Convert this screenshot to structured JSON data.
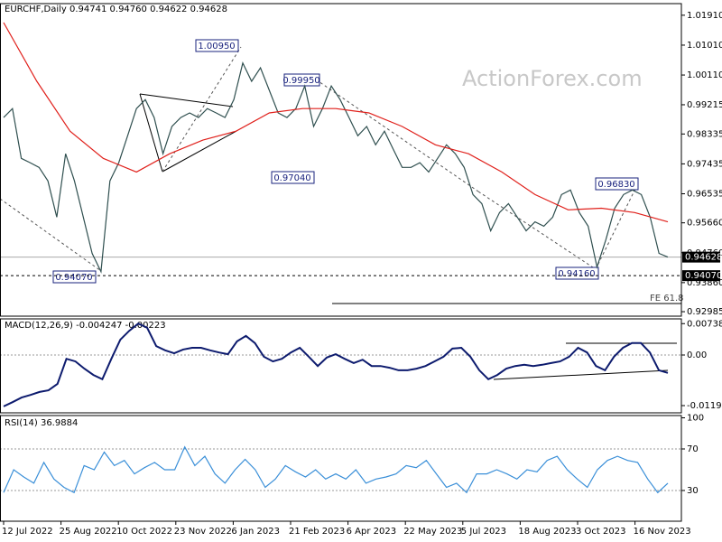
{
  "chart_data": [
    {
      "type": "line",
      "title": "EURCHF,Daily  0.94741 0.94760 0.94622 0.94628",
      "watermark": "ActionForex.com",
      "series": [
        {
          "color": "#2f4f4f",
          "values": [
            0.9883,
            0.991,
            0.976,
            0.9747,
            0.9733,
            0.9692,
            0.9583,
            0.9774,
            0.9692,
            0.9583,
            0.9474,
            0.9419,
            0.9692,
            0.9747,
            0.9828,
            0.991,
            0.9937,
            0.9883,
            0.9774,
            0.9856,
            0.9883,
            0.9897,
            0.9883,
            0.991,
            0.9897,
            0.9883,
            0.9937,
            1.0047,
            0.9992,
            1.0033,
            0.9965,
            0.9897,
            0.9883,
            0.991,
            0.9978,
            0.9856,
            0.991,
            0.9978,
            0.9937,
            0.9883,
            0.9828,
            0.9856,
            0.9801,
            0.9842,
            0.9787,
            0.9733,
            0.9733,
            0.9747,
            0.9719,
            0.976,
            0.9801,
            0.9774,
            0.9733,
            0.9651,
            0.9624,
            0.9542,
            0.9597,
            0.9624,
            0.9583,
            0.9542,
            0.9569,
            0.9556,
            0.9583,
            0.9651,
            0.9665,
            0.9597,
            0.9556,
            0.9433,
            0.9515,
            0.961,
            0.9651,
            0.9665,
            0.9651,
            0.9583,
            0.9474,
            0.9463
          ]
        },
        {
          "color": "#e0201b",
          "values": [
            1.0169,
            0.9992,
            0.9842,
            0.976,
            0.9719,
            0.9774,
            0.9815,
            0.9842,
            0.9897,
            0.991,
            0.991,
            0.9897,
            0.9856,
            0.9801,
            0.9774,
            0.9719,
            0.9651,
            0.9605,
            0.961,
            0.9597,
            0.9569
          ]
        }
      ],
      "ylim": [
        0.9285,
        1.0226
      ],
      "yticks": [
        {
          "value": 1.0191,
          "label": "1.01910"
        },
        {
          "value": 1.0101,
          "label": "1.01010"
        },
        {
          "value": 1.0011,
          "label": "1.00110"
        },
        0.99215,
        0.98335,
        0.97435,
        0.96535,
        {
          "value": 0.9566,
          "label": "0.95660"
        },
        {
          "value": 0.9476,
          "label": "0.94760"
        },
        {
          "value": 0.9386,
          "label": "0.93860"
        },
        0.92985
      ],
      "current": {
        "value": 0.94628,
        "label": "0.94628"
      },
      "support": {
        "value": 0.9407,
        "label": "0.94070"
      },
      "annotations": [
        "1.00950",
        "0.99950",
        "0.97040",
        "0.94070",
        "0.94160",
        "0.96830",
        "FE 61.8"
      ]
    },
    {
      "type": "line",
      "title": "MACD(12,26,9) -0.004247 -0.00223",
      "series": [
        {
          "color": "#0d1b6e",
          "values": [
            -0.0121,
            -0.0111,
            -0.01,
            -0.0094,
            -0.0087,
            -0.0083,
            -0.0068,
            -0.0009,
            -0.0015,
            -0.0032,
            -0.0047,
            -0.0057,
            -0.0009,
            0.0036,
            0.0057,
            0.0074,
            0.0064,
            0.0021,
            0.0011,
            0.0004,
            0.0013,
            0.0017,
            0.0017,
            0.0011,
            0.0006,
            0.0002,
            0.0032,
            0.0045,
            0.0028,
            -0.0004,
            -0.0015,
            -0.0009,
            0.0006,
            0.0017,
            -0.0004,
            -0.0026,
            -0.0006,
            0.0002,
            -0.0009,
            -0.0019,
            -0.0011,
            -0.0026,
            -0.0026,
            -0.003,
            -0.0036,
            -0.0036,
            -0.0032,
            -0.0026,
            -0.0015,
            -0.0004,
            0.0015,
            0.0017,
            -0.0004,
            -0.0036,
            -0.0057,
            -0.0047,
            -0.0032,
            -0.0026,
            -0.0023,
            -0.0026,
            -0.0023,
            -0.0019,
            -0.0015,
            -0.0004,
            0.0017,
            0.0006,
            -0.0026,
            -0.0036,
            -0.0004,
            0.0017,
            0.0028,
            0.0028,
            0.0006,
            -0.0036,
            -0.0042
          ]
        }
      ],
      "ylim": [
        -0.0136,
        0.0085
      ],
      "yticks": [
        0.007384,
        {
          "value": 0,
          "label": "0.00"
        },
        -0.0119
      ],
      "levels": [
        0
      ]
    },
    {
      "type": "line",
      "title": "RSI(14) 36.9884",
      "series": [
        {
          "color": "#3a8fd8",
          "values": [
            28,
            50,
            43,
            37,
            57,
            41,
            33,
            28,
            54,
            50,
            67,
            54,
            59,
            46,
            52,
            57,
            50,
            50,
            72,
            54,
            63,
            46,
            37,
            50,
            60,
            50,
            33,
            41,
            54,
            48,
            43,
            50,
            41,
            46,
            41,
            50,
            37,
            41,
            43,
            46,
            54,
            52,
            59,
            46,
            33,
            37,
            28,
            46,
            46,
            50,
            46,
            41,
            50,
            48,
            59,
            63,
            50,
            41,
            33,
            50,
            59,
            63,
            59,
            57,
            41,
            28,
            37
          ]
        }
      ],
      "ylim": [
        0.4,
        102.2
      ],
      "yticks": [
        100,
        70,
        30
      ],
      "levels": [
        70,
        30
      ],
      "xtick_labels": [
        "12 Jul 2022",
        "25 Aug 2022",
        "10 Oct 2022",
        "23 Nov 2022",
        "6 Jan 2023",
        "21 Feb 2023",
        "6 Apr 2023",
        "22 May 2023",
        "5 Jul 2023",
        "18 Aug 2023",
        "3 Oct 2023",
        "16 Nov 2023"
      ]
    }
  ]
}
